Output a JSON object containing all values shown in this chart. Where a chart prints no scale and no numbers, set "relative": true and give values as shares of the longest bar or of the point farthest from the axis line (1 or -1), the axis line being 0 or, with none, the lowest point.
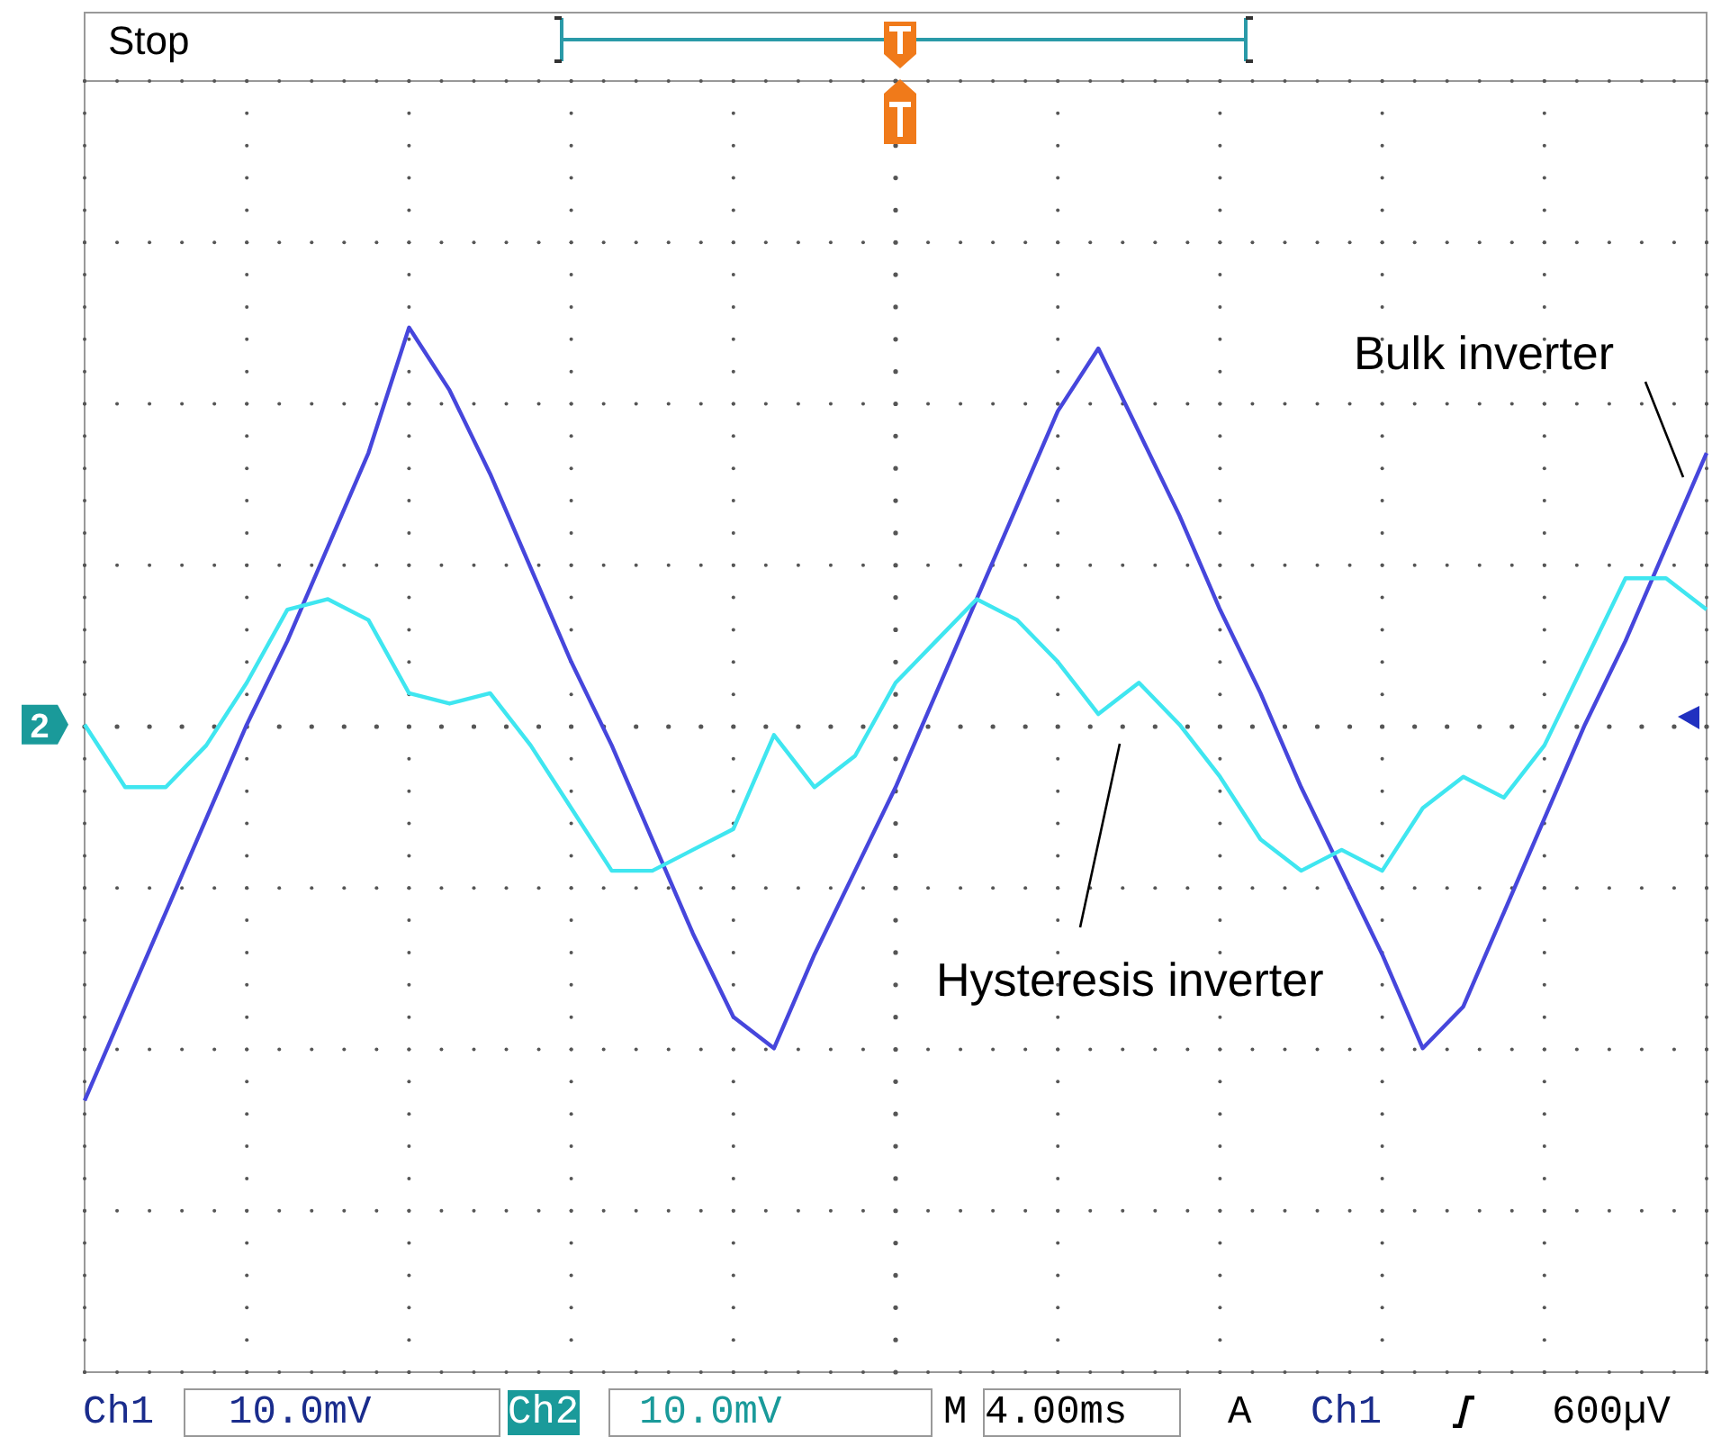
{
  "chart_data": {
    "type": "line",
    "relative": true,
    "marker": "none",
    "line_style": "solid",
    "categories": [
      null,
      null,
      null,
      null,
      null,
      null,
      null,
      null,
      null,
      null,
      null,
      null,
      null,
      null,
      null,
      null,
      null,
      null,
      null,
      null,
      null,
      null,
      null,
      null,
      null,
      null,
      null,
      null,
      null,
      null,
      null,
      null,
      null,
      null,
      null,
      null,
      null,
      null,
      null,
      null,
      null
    ],
    "series": [
      {
        "name": "Bulk inverter",
        "color": "#4646dc",
        "values": [
          0.26,
          0.35,
          0.44,
          0.53,
          0.62,
          0.7,
          0.79,
          0.88,
          1,
          0.94,
          0.86,
          0.77,
          0.68,
          0.6,
          0.51,
          0.42,
          0.34,
          0.31,
          0.4,
          0.48,
          0.56,
          0.65,
          0.74,
          0.83,
          0.92,
          0.98,
          0.9,
          0.82,
          0.73,
          0.65,
          0.56,
          0.48,
          0.4,
          0.31,
          0.35,
          0.44,
          0.53,
          0.62,
          0.7,
          0.79,
          0.88
        ]
      },
      {
        "name": "Hysteresis inverter",
        "color": "#3fe6f0",
        "values": [
          0.62,
          0.56,
          0.56,
          0.6,
          0.66,
          0.73,
          0.74,
          0.72,
          0.65,
          0.64,
          0.65,
          0.6,
          0.54,
          0.48,
          0.48,
          0.5,
          0.52,
          0.61,
          0.56,
          0.59,
          0.66,
          0.7,
          0.74,
          0.72,
          0.68,
          0.63,
          0.66,
          0.62,
          0.57,
          0.51,
          0.48,
          0.5,
          0.48,
          0.54,
          0.57,
          0.55,
          0.6,
          0.68,
          0.76,
          0.76,
          0.73
        ]
      }
    ],
    "annotations": [
      "Stop",
      "Ch1",
      "10.0mV",
      "Ch2",
      "10.0mV",
      "M",
      "4.00ms",
      "A",
      "Ch1",
      "600µV",
      "2"
    ]
  }
}
